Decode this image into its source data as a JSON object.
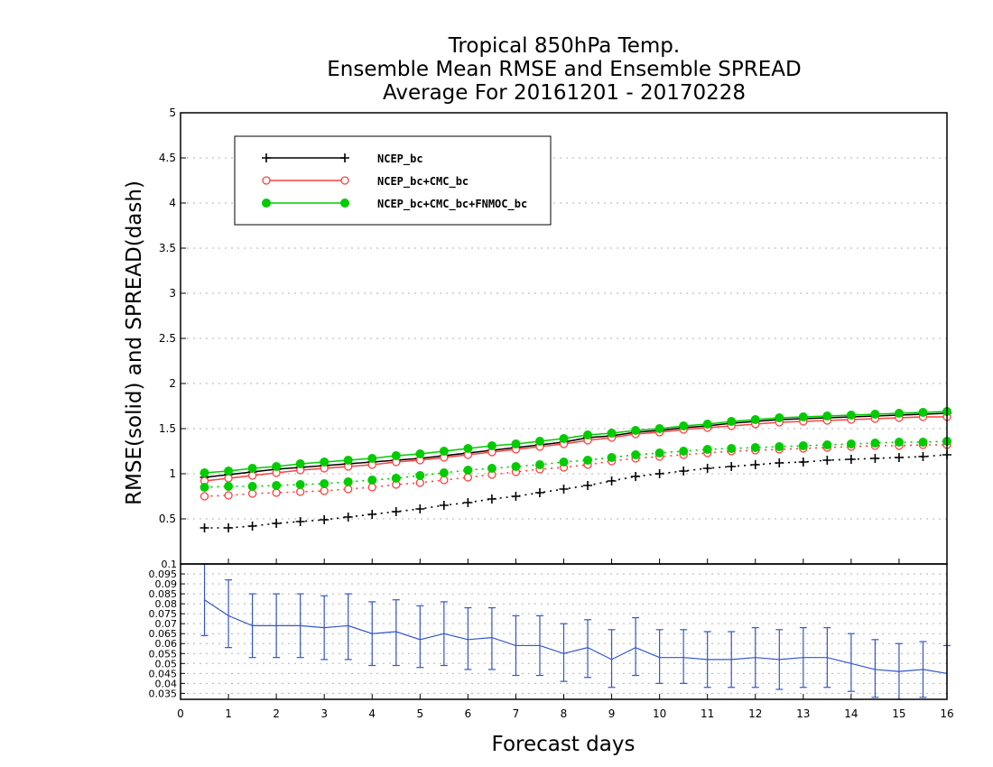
{
  "chart_data": {
    "type": "line",
    "title_lines": [
      "Tropical 850hPa Temp.",
      "Ensemble Mean RMSE and Ensemble SPREAD",
      "Average For 20161201 - 20170228"
    ],
    "xlabel": "Forecast days",
    "ylabel": "RMSE(solid) and SPREAD(dash)",
    "xlim": [
      0,
      16
    ],
    "x_ticks": [
      "0",
      "1",
      "2",
      "3",
      "4",
      "5",
      "6",
      "7",
      "8",
      "9",
      "10",
      "11",
      "12",
      "13",
      "14",
      "15",
      "16"
    ],
    "x": [
      0.5,
      1,
      1.5,
      2,
      2.5,
      3,
      3.5,
      4,
      4.5,
      5,
      5.5,
      6,
      6.5,
      7,
      7.5,
      8,
      8.5,
      9,
      9.5,
      10,
      10.5,
      11,
      11.5,
      12,
      12.5,
      13,
      13.5,
      14,
      14.5,
      15,
      15.5,
      16
    ],
    "top_panel": {
      "ylim": [
        0,
        5
      ],
      "y_ticks": [
        "0.5",
        "1",
        "1.5",
        "2",
        "2.5",
        "3",
        "3.5",
        "4",
        "4.5",
        "5"
      ],
      "grid": true,
      "legend_position": "top-left",
      "series": [
        {
          "name": "NCEP_bc",
          "color": "#000000",
          "marker": "plus",
          "rmse": [
            0.96,
            0.99,
            1.02,
            1.05,
            1.07,
            1.09,
            1.11,
            1.13,
            1.15,
            1.17,
            1.2,
            1.23,
            1.26,
            1.29,
            1.32,
            1.35,
            1.4,
            1.42,
            1.46,
            1.48,
            1.51,
            1.53,
            1.56,
            1.58,
            1.6,
            1.61,
            1.62,
            1.63,
            1.64,
            1.65,
            1.66,
            1.67
          ],
          "spread": [
            0.4,
            0.4,
            0.42,
            0.45,
            0.47,
            0.49,
            0.52,
            0.55,
            0.58,
            0.61,
            0.65,
            0.68,
            0.72,
            0.75,
            0.79,
            0.83,
            0.87,
            0.92,
            0.97,
            1.0,
            1.03,
            1.06,
            1.08,
            1.1,
            1.12,
            1.13,
            1.15,
            1.16,
            1.17,
            1.18,
            1.19,
            1.21
          ]
        },
        {
          "name": "NCEP_bc+CMC_bc",
          "color": "#ff4040",
          "marker": "open-circle",
          "rmse": [
            0.92,
            0.95,
            0.98,
            1.01,
            1.04,
            1.06,
            1.08,
            1.1,
            1.13,
            1.15,
            1.18,
            1.21,
            1.24,
            1.27,
            1.3,
            1.33,
            1.37,
            1.4,
            1.44,
            1.46,
            1.49,
            1.51,
            1.53,
            1.55,
            1.57,
            1.58,
            1.59,
            1.6,
            1.61,
            1.62,
            1.63,
            1.63
          ],
          "spread": [
            0.75,
            0.76,
            0.78,
            0.79,
            0.8,
            0.81,
            0.83,
            0.85,
            0.88,
            0.9,
            0.93,
            0.96,
            0.99,
            1.02,
            1.05,
            1.07,
            1.1,
            1.14,
            1.17,
            1.19,
            1.21,
            1.23,
            1.25,
            1.26,
            1.27,
            1.28,
            1.29,
            1.3,
            1.31,
            1.31,
            1.32,
            1.32
          ]
        },
        {
          "name": "NCEP_bc+CMC_bc+FNMOC_bc",
          "color": "#00cc00",
          "marker": "filled-circle",
          "rmse": [
            1.01,
            1.03,
            1.06,
            1.08,
            1.11,
            1.13,
            1.15,
            1.17,
            1.2,
            1.22,
            1.25,
            1.28,
            1.31,
            1.33,
            1.36,
            1.39,
            1.43,
            1.45,
            1.48,
            1.5,
            1.53,
            1.55,
            1.58,
            1.6,
            1.62,
            1.63,
            1.64,
            1.65,
            1.66,
            1.67,
            1.68,
            1.69
          ],
          "spread": [
            0.85,
            0.86,
            0.86,
            0.87,
            0.88,
            0.89,
            0.91,
            0.93,
            0.95,
            0.98,
            1.01,
            1.04,
            1.06,
            1.08,
            1.1,
            1.13,
            1.15,
            1.18,
            1.21,
            1.23,
            1.25,
            1.27,
            1.28,
            1.29,
            1.3,
            1.31,
            1.32,
            1.33,
            1.34,
            1.35,
            1.35,
            1.36
          ]
        }
      ]
    },
    "bottom_panel": {
      "ylim": [
        0.032,
        0.1
      ],
      "y_ticks": [
        "0.035",
        "0.04",
        "0.045",
        "0.05",
        "0.055",
        "0.06",
        "0.065",
        "0.07",
        "0.075",
        "0.08",
        "0.085",
        "0.09",
        "0.095",
        "0.1"
      ],
      "grid": true,
      "color": "#3355cc",
      "values": [
        0.082,
        0.074,
        0.069,
        0.069,
        0.069,
        0.068,
        0.069,
        0.065,
        0.066,
        0.062,
        0.065,
        0.062,
        0.063,
        0.059,
        0.059,
        0.055,
        0.058,
        0.052,
        0.058,
        0.053,
        0.053,
        0.052,
        0.052,
        0.053,
        0.052,
        0.053,
        0.053,
        0.05,
        0.047,
        0.046,
        0.047,
        0.045
      ],
      "err_low": [
        0.064,
        0.058,
        0.053,
        0.053,
        0.053,
        0.052,
        0.052,
        0.049,
        0.049,
        0.048,
        0.049,
        0.047,
        0.047,
        0.044,
        0.044,
        0.041,
        0.043,
        0.038,
        0.044,
        0.04,
        0.04,
        0.038,
        0.038,
        0.038,
        0.037,
        0.038,
        0.038,
        0.036,
        0.033,
        0.032,
        0.033,
        0.031
      ],
      "err_high": [
        0.1,
        0.092,
        0.085,
        0.085,
        0.085,
        0.084,
        0.085,
        0.081,
        0.082,
        0.079,
        0.081,
        0.078,
        0.078,
        0.074,
        0.074,
        0.07,
        0.072,
        0.067,
        0.073,
        0.067,
        0.067,
        0.066,
        0.066,
        0.068,
        0.067,
        0.068,
        0.068,
        0.065,
        0.062,
        0.06,
        0.061,
        0.059
      ]
    }
  }
}
